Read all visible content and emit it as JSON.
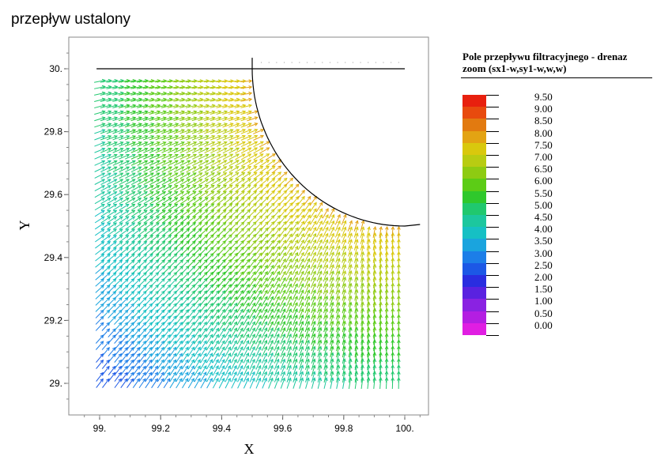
{
  "window_title": "przepływ ustalony",
  "chart_data": {
    "type": "vector-field",
    "title": "",
    "xlabel": "X",
    "ylabel": "Y",
    "xlim": [
      98.91,
      100.08
    ],
    "ylim": [
      28.91,
      30.12
    ],
    "x_ticks": [
      {
        "value": 99.0,
        "label": "99."
      },
      {
        "value": 99.2,
        "label": "99.2"
      },
      {
        "value": 99.4,
        "label": "99.4"
      },
      {
        "value": 99.6,
        "label": "99.6"
      },
      {
        "value": 99.8,
        "label": "99.8"
      },
      {
        "value": 100.0,
        "label": "100."
      }
    ],
    "y_ticks": [
      {
        "value": 29.0,
        "label": "29."
      },
      {
        "value": 29.2,
        "label": "29.2"
      },
      {
        "value": 29.4,
        "label": "29.4"
      },
      {
        "value": 29.6,
        "label": "29.6"
      },
      {
        "value": 29.8,
        "label": "29.8"
      },
      {
        "value": 30.0,
        "label": "30."
      }
    ],
    "boundary": {
      "top_line": {
        "x": [
          98.99,
          100.0
        ],
        "y": [
          30.0,
          30.0
        ]
      },
      "arc": {
        "center": [
          100.0,
          30.0
        ],
        "radius": 0.5
      },
      "bottom_segment": {
        "x": [
          100.0,
          100.05
        ],
        "y": [
          29.5,
          29.505
        ]
      }
    },
    "grid": false,
    "legend": {
      "title_line1": "Pole przepływu filtracyjnego - drenaz",
      "title_line2": "zoom (sx1-w,sy1-w,w,w)",
      "placement": "right",
      "levels": [
        "9.50",
        "9.00",
        "8.50",
        "8.00",
        "7.50",
        "7.00",
        "6.50",
        "6.00",
        "5.50",
        "5.00",
        "4.50",
        "4.00",
        "3.50",
        "3.00",
        "2.50",
        "2.00",
        "1.50",
        "1.00",
        "0.50",
        "0.00"
      ],
      "colors": [
        "#e8200e",
        "#e84a0e",
        "#e27a10",
        "#e3a313",
        "#d9c80d",
        "#b8cc12",
        "#8ecb12",
        "#5ccc16",
        "#2fc82c",
        "#20c86e",
        "#1cc79e",
        "#16c0c4",
        "#1aa4de",
        "#1c7ee8",
        "#1c58e6",
        "#2a2de0",
        "#5a22e0",
        "#8a22e2",
        "#b41ee2",
        "#e01ee2"
      ]
    }
  }
}
